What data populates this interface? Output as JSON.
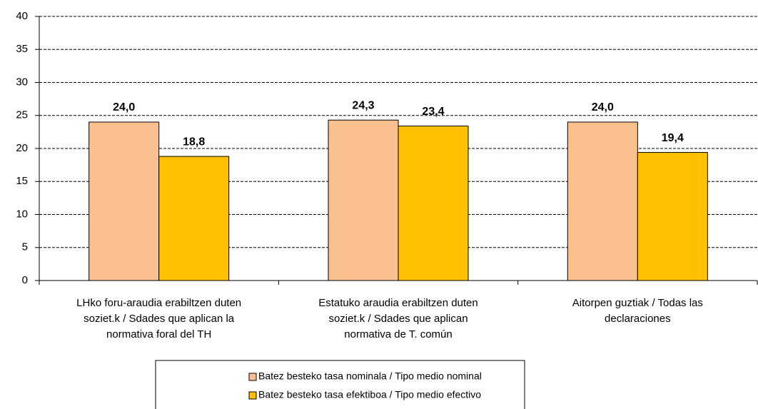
{
  "chart_data": {
    "type": "bar",
    "categories": [
      "LHko foru-araudia erabiltzen duten\nsoziet.k / Sdades que aplican la\nnormativa foral del TH",
      "Estatuko araudia erabiltzen duten\nsoziet.k / Sdades que aplican\nnormativa de T. común",
      "Aitorpen guztiak / Todas las\ndeclaraciones"
    ],
    "series": [
      {
        "name": "Batez besteko tasa nominala /  Tipo medio nominal",
        "color": "#fac090",
        "values": [
          24.0,
          24.3,
          24.0
        ],
        "value_labels": [
          "24,0",
          "24,3",
          "24,0"
        ]
      },
      {
        "name": "Batez besteko tasa efektiboa /  Tipo medio efectivo",
        "color": "#ffc000",
        "values": [
          18.8,
          23.4,
          19.4
        ],
        "value_labels": [
          "18,8",
          "23,4",
          "19,4"
        ]
      }
    ],
    "ylim": [
      0,
      40
    ],
    "yticks": [
      0,
      5,
      10,
      15,
      20,
      25,
      30,
      35,
      40
    ],
    "grid": true,
    "legend": "bottom"
  }
}
